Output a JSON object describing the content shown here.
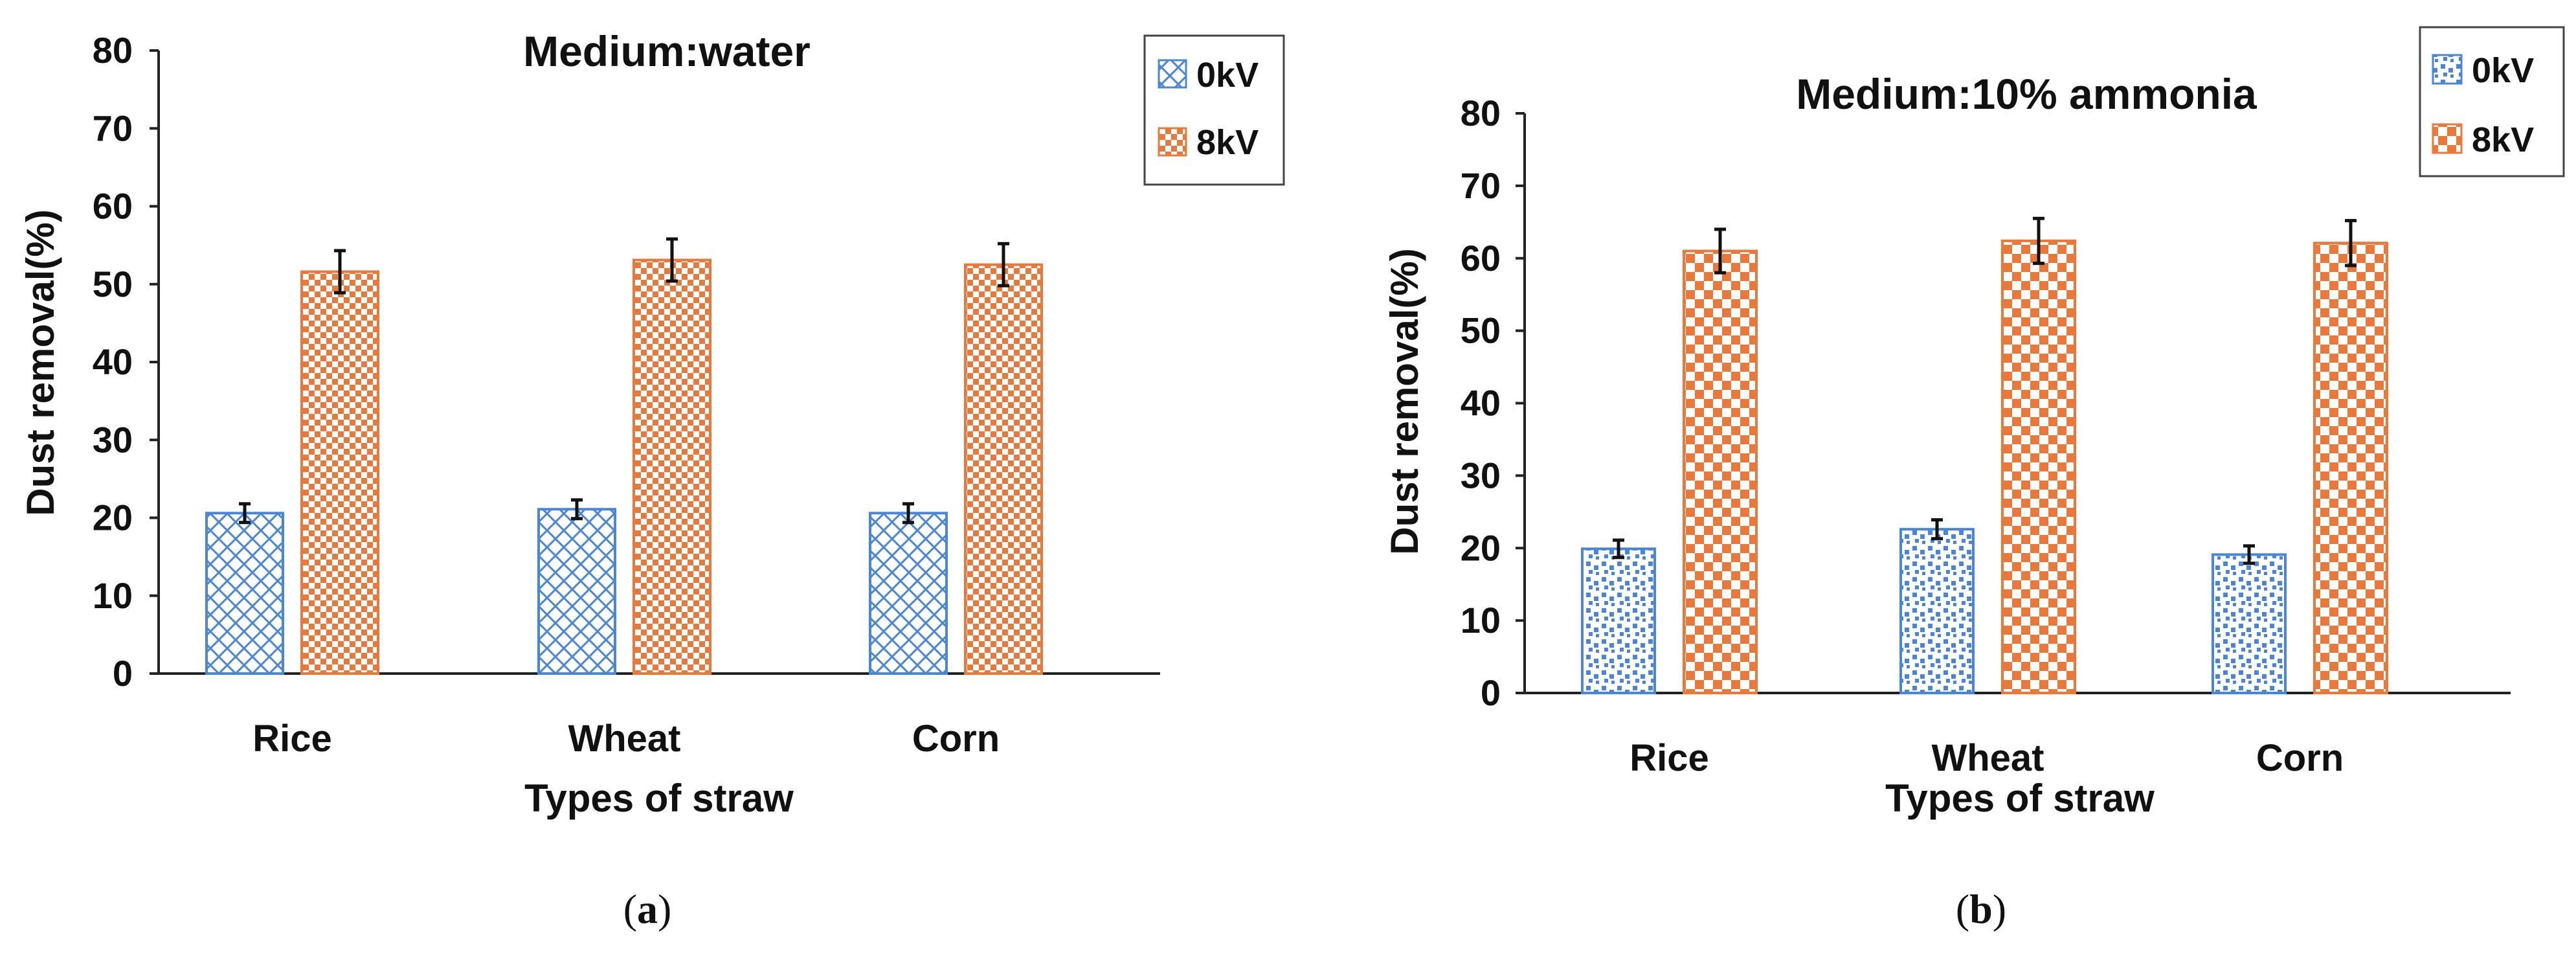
{
  "chart_data": [
    {
      "type": "bar",
      "title": "Medium:water",
      "xlabel": "Types of straw",
      "ylabel": "Dust removal(%)",
      "ylim": [
        0,
        80
      ],
      "yticks": [
        "0",
        "10",
        "20",
        "30",
        "40",
        "50",
        "60",
        "70",
        "80"
      ],
      "categories": [
        "Rice",
        "Wheat",
        "Corn"
      ],
      "series": [
        {
          "name": "0kV",
          "values": [
            20.6,
            21.1,
            20.6
          ],
          "errors": [
            1.2,
            1.2,
            1.2
          ],
          "color": "#4a86d8",
          "pattern": "crosshatch"
        },
        {
          "name": "8kV",
          "values": [
            51.6,
            53.1,
            52.5
          ],
          "errors": [
            2.7,
            2.7,
            2.7
          ],
          "color": "#e8793a",
          "pattern": "checker"
        }
      ],
      "legend": "top-right",
      "caption_open": "(",
      "caption_letter": "a",
      "caption_close": ")"
    },
    {
      "type": "bar",
      "title": "Medium:10% ammonia",
      "xlabel": "Types of straw",
      "ylabel": "Dust removal(%)",
      "ylim": [
        0,
        80
      ],
      "yticks": [
        "0",
        "10",
        "20",
        "30",
        "40",
        "50",
        "60",
        "70",
        "80"
      ],
      "categories": [
        "Rice",
        "Wheat",
        "Corn"
      ],
      "series": [
        {
          "name": "0kV",
          "values": [
            19.9,
            22.6,
            19.1
          ],
          "errors": [
            1.2,
            1.3,
            1.2
          ],
          "color": "#4a86d8",
          "pattern": "dots"
        },
        {
          "name": "8kV",
          "values": [
            61.0,
            62.4,
            62.1
          ],
          "errors": [
            3.0,
            3.1,
            3.1
          ],
          "color": "#e8793a",
          "pattern": "checker"
        }
      ],
      "legend": "top-right",
      "caption_open": "(",
      "caption_letter": "b",
      "caption_close": ")"
    }
  ]
}
